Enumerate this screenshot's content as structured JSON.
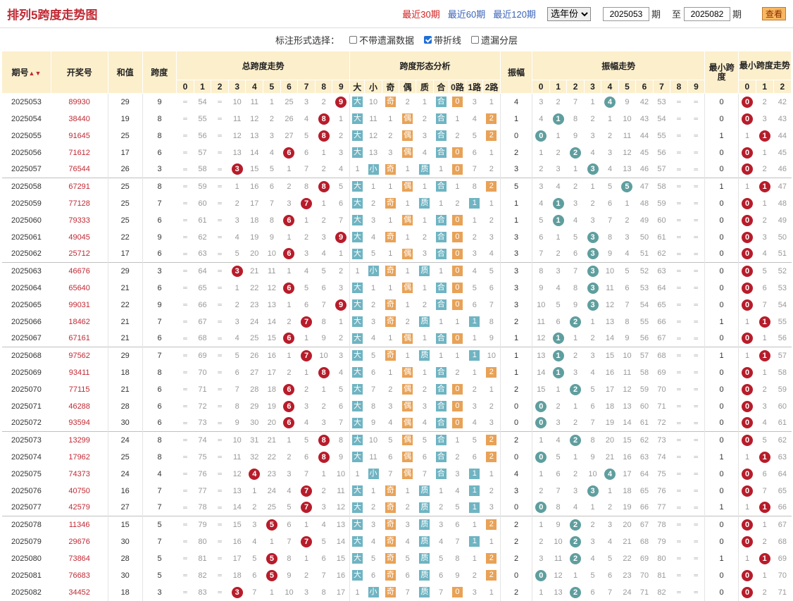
{
  "header": {
    "title": "排列5跨度走势图",
    "recent30": "最近30期",
    "recent60": "最近60期",
    "recent120": "最近120期",
    "year_select": "选年份",
    "from_issue": "2025053",
    "issue_unit": "期",
    "to_label": "至",
    "to_issue": "2025082",
    "query_button": "查看"
  },
  "options": {
    "label": "标注形式选择：",
    "no_miss": "不带遗漏数据",
    "polyline": "带折线",
    "layers": "遗漏分层",
    "polyline_checked": true
  },
  "table_headers": {
    "issue": "期号",
    "draw": "开奖号",
    "sum": "和值",
    "span": "跨度",
    "span_trend": "总跨度走势",
    "span_shape": "跨度形态分析",
    "amplitude": "振幅",
    "amp_trend": "振幅走势",
    "min_span": "最小跨度",
    "min_span_trend": "最小跨度走势",
    "digits": [
      "0",
      "1",
      "2",
      "3",
      "4",
      "5",
      "6",
      "7",
      "8",
      "9"
    ],
    "shape_cols": [
      "大",
      "小",
      "奇",
      "偶",
      "质",
      "合",
      "0路",
      "1路",
      "2路"
    ],
    "min_digits": [
      "0",
      "1",
      "2"
    ]
  },
  "colors": {
    "accent": "#c02a34",
    "header_bg": "#fcefcc",
    "ball_red": "#b71c2a",
    "ball_teal": "#5f9e9e",
    "block_blue": "#6fb4c2",
    "block_orange": "#e8a257"
  },
  "rows": [
    {
      "issue": "2025053",
      "draw": "89930",
      "sum": "29",
      "span": "9",
      "trend": [
        "",
        54,
        "",
        10,
        11,
        1,
        25,
        3,
        2,
        "*"
      ],
      "shape": [
        "*",
        10,
        "*",
        2,
        1,
        "*",
        "*",
        3,
        1
      ],
      "amp": "4",
      "amp_trend": [
        3,
        2,
        7,
        1,
        "*",
        9,
        42,
        53,
        "",
        ""
      ],
      "min": "0",
      "min_trend": [
        "*",
        2,
        42
      ]
    },
    {
      "issue": "2025054",
      "draw": "38440",
      "sum": "19",
      "span": "8",
      "trend": [
        "",
        55,
        "",
        11,
        12,
        2,
        26,
        4,
        "*",
        1
      ],
      "shape": [
        "*",
        11,
        1,
        "*",
        2,
        "*",
        1,
        4,
        "*"
      ],
      "amp": "1",
      "amp_trend": [
        4,
        "*",
        8,
        2,
        1,
        10,
        43,
        54,
        "",
        ""
      ],
      "min": "0",
      "min_trend": [
        "*",
        3,
        43
      ]
    },
    {
      "issue": "2025055",
      "draw": "91645",
      "sum": "25",
      "span": "8",
      "trend": [
        "",
        56,
        "",
        12,
        13,
        3,
        27,
        5,
        "*",
        2
      ],
      "shape": [
        "*",
        12,
        2,
        "*",
        3,
        "*",
        2,
        5,
        "*"
      ],
      "amp": "0",
      "amp_trend": [
        "*",
        1,
        9,
        3,
        2,
        11,
        44,
        55,
        "",
        ""
      ],
      "min": "1",
      "min_trend": [
        1,
        "*",
        44
      ]
    },
    {
      "issue": "2025056",
      "draw": "71612",
      "sum": "17",
      "span": "6",
      "trend": [
        "",
        57,
        "",
        13,
        14,
        4,
        "*",
        6,
        1,
        3
      ],
      "shape": [
        "*",
        13,
        3,
        "*",
        4,
        "*",
        "*",
        6,
        1
      ],
      "amp": "2",
      "amp_trend": [
        1,
        2,
        "*",
        4,
        3,
        12,
        45,
        56,
        "",
        ""
      ],
      "min": "0",
      "min_trend": [
        "*",
        1,
        45
      ]
    },
    {
      "issue": "2025057",
      "draw": "76544",
      "sum": "26",
      "span": "3",
      "trend": [
        "",
        58,
        "",
        "*",
        15,
        5,
        1,
        7,
        2,
        4
      ],
      "shape": [
        1,
        "*",
        "*",
        1,
        "*",
        1,
        "*",
        7,
        2
      ],
      "amp": "3",
      "amp_trend": [
        2,
        3,
        1,
        "*",
        4,
        13,
        46,
        57,
        "",
        ""
      ],
      "min": "0",
      "min_trend": [
        "*",
        2,
        46
      ]
    },
    {
      "issue": "2025058",
      "draw": "67291",
      "sum": "25",
      "span": "8",
      "trend": [
        "",
        59,
        "",
        1,
        16,
        6,
        2,
        8,
        "*",
        5
      ],
      "shape": [
        "*",
        1,
        1,
        "*",
        1,
        "*",
        1,
        8,
        "*"
      ],
      "amp": "5",
      "amp_trend": [
        3,
        4,
        2,
        1,
        5,
        "*",
        47,
        58,
        "",
        ""
      ],
      "min": "1",
      "min_trend": [
        1,
        "*",
        47
      ]
    },
    {
      "issue": "2025059",
      "draw": "77128",
      "sum": "25",
      "span": "7",
      "trend": [
        "",
        60,
        "",
        2,
        17,
        7,
        3,
        "*",
        1,
        6
      ],
      "shape": [
        "*",
        2,
        "*",
        1,
        "*",
        1,
        2,
        "*",
        1
      ],
      "amp": "1",
      "amp_trend": [
        4,
        "*",
        3,
        2,
        6,
        1,
        48,
        59,
        "",
        ""
      ],
      "min": "0",
      "min_trend": [
        "*",
        1,
        48
      ]
    },
    {
      "issue": "2025060",
      "draw": "79333",
      "sum": "25",
      "span": "6",
      "trend": [
        "",
        61,
        "",
        3,
        18,
        8,
        "*",
        1,
        2,
        7
      ],
      "shape": [
        "*",
        3,
        1,
        "*",
        1,
        "*",
        "*",
        1,
        2
      ],
      "amp": "1",
      "amp_trend": [
        5,
        "*",
        4,
        3,
        7,
        2,
        49,
        60,
        "",
        ""
      ],
      "min": "0",
      "min_trend": [
        "*",
        2,
        49
      ]
    },
    {
      "issue": "2025061",
      "draw": "49045",
      "sum": "22",
      "span": "9",
      "trend": [
        "",
        62,
        "",
        4,
        19,
        9,
        1,
        2,
        3,
        "*"
      ],
      "shape": [
        "*",
        4,
        "*",
        1,
        2,
        "*",
        "*",
        2,
        3
      ],
      "amp": "3",
      "amp_trend": [
        6,
        1,
        5,
        "*",
        8,
        3,
        50,
        61,
        "",
        ""
      ],
      "min": "0",
      "min_trend": [
        "*",
        3,
        50
      ]
    },
    {
      "issue": "2025062",
      "draw": "25712",
      "sum": "17",
      "span": "6",
      "trend": [
        "",
        63,
        "",
        5,
        20,
        10,
        "*",
        3,
        4,
        1
      ],
      "shape": [
        "*",
        5,
        1,
        "*",
        3,
        "*",
        "*",
        3,
        4
      ],
      "amp": "3",
      "amp_trend": [
        7,
        2,
        6,
        "*",
        9,
        4,
        51,
        62,
        "",
        ""
      ],
      "min": "0",
      "min_trend": [
        "*",
        4,
        51
      ]
    },
    {
      "issue": "2025063",
      "draw": "46676",
      "sum": "29",
      "span": "3",
      "trend": [
        "",
        64,
        "",
        "*",
        21,
        11,
        1,
        4,
        5,
        2
      ],
      "shape": [
        1,
        "*",
        "*",
        1,
        "*",
        1,
        "*",
        4,
        5
      ],
      "amp": "3",
      "amp_trend": [
        8,
        3,
        7,
        "*",
        10,
        5,
        52,
        63,
        "",
        ""
      ],
      "min": "0",
      "min_trend": [
        "*",
        5,
        52
      ]
    },
    {
      "issue": "2025064",
      "draw": "65640",
      "sum": "21",
      "span": "6",
      "trend": [
        "",
        65,
        "",
        1,
        22,
        12,
        "*",
        5,
        6,
        3
      ],
      "shape": [
        "*",
        1,
        1,
        "*",
        1,
        "*",
        "*",
        5,
        6
      ],
      "amp": "3",
      "amp_trend": [
        9,
        4,
        8,
        "*",
        11,
        6,
        53,
        64,
        "",
        ""
      ],
      "min": "0",
      "min_trend": [
        "*",
        6,
        53
      ]
    },
    {
      "issue": "2025065",
      "draw": "99031",
      "sum": "22",
      "span": "9",
      "trend": [
        "",
        66,
        "",
        2,
        23,
        13,
        1,
        6,
        7,
        "*"
      ],
      "shape": [
        "*",
        2,
        "*",
        1,
        2,
        "*",
        "*",
        6,
        7
      ],
      "amp": "3",
      "amp_trend": [
        10,
        5,
        9,
        "*",
        12,
        7,
        54,
        65,
        "",
        ""
      ],
      "min": "0",
      "min_trend": [
        "*",
        7,
        54
      ]
    },
    {
      "issue": "2025066",
      "draw": "18462",
      "sum": "21",
      "span": "7",
      "trend": [
        "",
        67,
        "",
        3,
        24,
        14,
        2,
        "*",
        8,
        1
      ],
      "shape": [
        "*",
        3,
        "*",
        2,
        "*",
        1,
        1,
        "*",
        8
      ],
      "amp": "2",
      "amp_trend": [
        11,
        6,
        "*",
        1,
        13,
        8,
        55,
        66,
        "",
        ""
      ],
      "min": "1",
      "min_trend": [
        1,
        "*",
        55
      ]
    },
    {
      "issue": "2025067",
      "draw": "67161",
      "sum": "21",
      "span": "6",
      "trend": [
        "",
        68,
        "",
        4,
        25,
        15,
        "*",
        1,
        9,
        2
      ],
      "shape": [
        "*",
        4,
        1,
        "*",
        1,
        "*",
        "*",
        1,
        9
      ],
      "amp": "1",
      "amp_trend": [
        12,
        "*",
        1,
        2,
        14,
        9,
        56,
        67,
        "",
        ""
      ],
      "min": "0",
      "min_trend": [
        "*",
        1,
        56
      ]
    },
    {
      "issue": "2025068",
      "draw": "97562",
      "sum": "29",
      "span": "7",
      "trend": [
        "",
        69,
        "",
        5,
        26,
        16,
        1,
        "*",
        10,
        3
      ],
      "shape": [
        "*",
        5,
        "*",
        1,
        "*",
        1,
        1,
        "*",
        10
      ],
      "amp": "1",
      "amp_trend": [
        13,
        "*",
        2,
        3,
        15,
        10,
        57,
        68,
        "",
        ""
      ],
      "min": "1",
      "min_trend": [
        1,
        "*",
        57
      ]
    },
    {
      "issue": "2025069",
      "draw": "93411",
      "sum": "18",
      "span": "8",
      "trend": [
        "",
        70,
        "",
        6,
        27,
        17,
        2,
        1,
        "*",
        4
      ],
      "shape": [
        "*",
        6,
        1,
        "*",
        1,
        "*",
        2,
        1,
        "*"
      ],
      "amp": "1",
      "amp_trend": [
        14,
        "*",
        3,
        4,
        16,
        11,
        58,
        69,
        "",
        ""
      ],
      "min": "0",
      "min_trend": [
        "*",
        1,
        58
      ]
    },
    {
      "issue": "2025070",
      "draw": "77115",
      "sum": "21",
      "span": "6",
      "trend": [
        "",
        71,
        "",
        7,
        28,
        18,
        "*",
        2,
        1,
        5
      ],
      "shape": [
        "*",
        7,
        2,
        "*",
        2,
        "*",
        "*",
        2,
        1
      ],
      "amp": "2",
      "amp_trend": [
        15,
        1,
        "*",
        5,
        17,
        12,
        59,
        70,
        "",
        ""
      ],
      "min": "0",
      "min_trend": [
        "*",
        2,
        59
      ]
    },
    {
      "issue": "2025071",
      "draw": "46288",
      "sum": "28",
      "span": "6",
      "trend": [
        "",
        72,
        "",
        8,
        29,
        19,
        "*",
        3,
        2,
        6
      ],
      "shape": [
        "*",
        8,
        3,
        "*",
        3,
        "*",
        "*",
        3,
        2
      ],
      "amp": "0",
      "amp_trend": [
        "*",
        2,
        1,
        6,
        18,
        13,
        60,
        71,
        "",
        ""
      ],
      "min": "0",
      "min_trend": [
        "*",
        3,
        60
      ]
    },
    {
      "issue": "2025072",
      "draw": "93594",
      "sum": "30",
      "span": "6",
      "trend": [
        "",
        73,
        "",
        9,
        30,
        20,
        "*",
        4,
        3,
        7
      ],
      "shape": [
        "*",
        9,
        4,
        "*",
        4,
        "*",
        "*",
        4,
        3
      ],
      "amp": "0",
      "amp_trend": [
        "*",
        3,
        2,
        7,
        19,
        14,
        61,
        72,
        "",
        ""
      ],
      "min": "0",
      "min_trend": [
        "*",
        4,
        61
      ]
    },
    {
      "issue": "2025073",
      "draw": "13299",
      "sum": "24",
      "span": "8",
      "trend": [
        "",
        74,
        "",
        10,
        31,
        21,
        1,
        5,
        "*",
        8
      ],
      "shape": [
        "*",
        10,
        5,
        "*",
        5,
        "*",
        1,
        5,
        "*"
      ],
      "amp": "2",
      "amp_trend": [
        1,
        4,
        "*",
        8,
        20,
        15,
        62,
        73,
        "",
        ""
      ],
      "min": "0",
      "min_trend": [
        "*",
        5,
        62
      ]
    },
    {
      "issue": "2025074",
      "draw": "17962",
      "sum": "25",
      "span": "8",
      "trend": [
        "",
        75,
        "",
        11,
        32,
        22,
        2,
        6,
        "*",
        9
      ],
      "shape": [
        "*",
        11,
        6,
        "*",
        6,
        "*",
        2,
        6,
        "*"
      ],
      "amp": "0",
      "amp_trend": [
        "*",
        5,
        1,
        9,
        21,
        16,
        63,
        74,
        "",
        ""
      ],
      "min": "1",
      "min_trend": [
        1,
        "*",
        63
      ]
    },
    {
      "issue": "2025075",
      "draw": "74373",
      "sum": "24",
      "span": "4",
      "trend": [
        "",
        76,
        "",
        12,
        "*",
        23,
        3,
        7,
        1,
        10
      ],
      "shape": [
        1,
        "*",
        7,
        "*",
        7,
        "*",
        3,
        "*",
        1
      ],
      "amp": "4",
      "amp_trend": [
        1,
        6,
        2,
        10,
        "*",
        17,
        64,
        75,
        "",
        ""
      ],
      "min": "0",
      "min_trend": [
        "*",
        6,
        64
      ]
    },
    {
      "issue": "2025076",
      "draw": "40750",
      "sum": "16",
      "span": "7",
      "trend": [
        "",
        77,
        "",
        13,
        1,
        24,
        4,
        "*",
        2,
        11
      ],
      "shape": [
        "*",
        1,
        "*",
        1,
        "*",
        1,
        4,
        "*",
        2
      ],
      "amp": "3",
      "amp_trend": [
        2,
        7,
        3,
        "*",
        1,
        18,
        65,
        76,
        "",
        ""
      ],
      "min": "0",
      "min_trend": [
        "*",
        7,
        65
      ]
    },
    {
      "issue": "2025077",
      "draw": "42579",
      "sum": "27",
      "span": "7",
      "trend": [
        "",
        78,
        "",
        14,
        2,
        25,
        5,
        "*",
        3,
        12
      ],
      "shape": [
        "*",
        2,
        "*",
        2,
        "*",
        2,
        5,
        "*",
        3
      ],
      "amp": "0",
      "amp_trend": [
        "*",
        8,
        4,
        1,
        2,
        19,
        66,
        77,
        "",
        ""
      ],
      "min": "1",
      "min_trend": [
        1,
        "*",
        66
      ]
    },
    {
      "issue": "2025078",
      "draw": "11346",
      "sum": "15",
      "span": "5",
      "trend": [
        "",
        79,
        "",
        15,
        3,
        "*",
        6,
        1,
        4,
        13
      ],
      "shape": [
        "*",
        3,
        "*",
        3,
        "*",
        3,
        6,
        1,
        "*"
      ],
      "amp": "2",
      "amp_trend": [
        1,
        9,
        "*",
        2,
        3,
        20,
        67,
        78,
        "",
        ""
      ],
      "min": "0",
      "min_trend": [
        "*",
        1,
        67
      ]
    },
    {
      "issue": "2025079",
      "draw": "29676",
      "sum": "30",
      "span": "7",
      "trend": [
        "",
        80,
        "",
        16,
        4,
        1,
        7,
        "*",
        5,
        14
      ],
      "shape": [
        "*",
        4,
        "*",
        4,
        "*",
        4,
        7,
        "*",
        1
      ],
      "amp": "2",
      "amp_trend": [
        2,
        10,
        "*",
        3,
        4,
        21,
        68,
        79,
        "",
        ""
      ],
      "min": "0",
      "min_trend": [
        "*",
        2,
        68
      ]
    },
    {
      "issue": "2025080",
      "draw": "73864",
      "sum": "28",
      "span": "5",
      "trend": [
        "",
        81,
        "",
        17,
        5,
        "*",
        8,
        1,
        6,
        15
      ],
      "shape": [
        "*",
        5,
        "*",
        5,
        "*",
        5,
        8,
        1,
        "*"
      ],
      "amp": "2",
      "amp_trend": [
        3,
        11,
        "*",
        4,
        5,
        22,
        69,
        80,
        "",
        ""
      ],
      "min": "1",
      "min_trend": [
        1,
        "*",
        69
      ]
    },
    {
      "issue": "2025081",
      "draw": "76683",
      "sum": "30",
      "span": "5",
      "trend": [
        "",
        82,
        "",
        18,
        6,
        "*",
        9,
        2,
        7,
        16
      ],
      "shape": [
        "*",
        6,
        "*",
        6,
        "*",
        6,
        9,
        2,
        "*"
      ],
      "amp": "0",
      "amp_trend": [
        "*",
        12,
        1,
        5,
        6,
        23,
        70,
        81,
        "",
        ""
      ],
      "min": "0",
      "min_trend": [
        "*",
        1,
        70
      ]
    },
    {
      "issue": "2025082",
      "draw": "34452",
      "sum": "18",
      "span": "3",
      "trend": [
        "",
        83,
        "",
        "*",
        7,
        1,
        10,
        3,
        8,
        17
      ],
      "shape": [
        1,
        "*",
        "*",
        7,
        "*",
        7,
        "*",
        3,
        1
      ],
      "amp": "2",
      "amp_trend": [
        1,
        13,
        "*",
        6,
        7,
        24,
        71,
        82,
        "",
        ""
      ],
      "min": "0",
      "min_trend": [
        "*",
        2,
        71
      ]
    }
  ]
}
